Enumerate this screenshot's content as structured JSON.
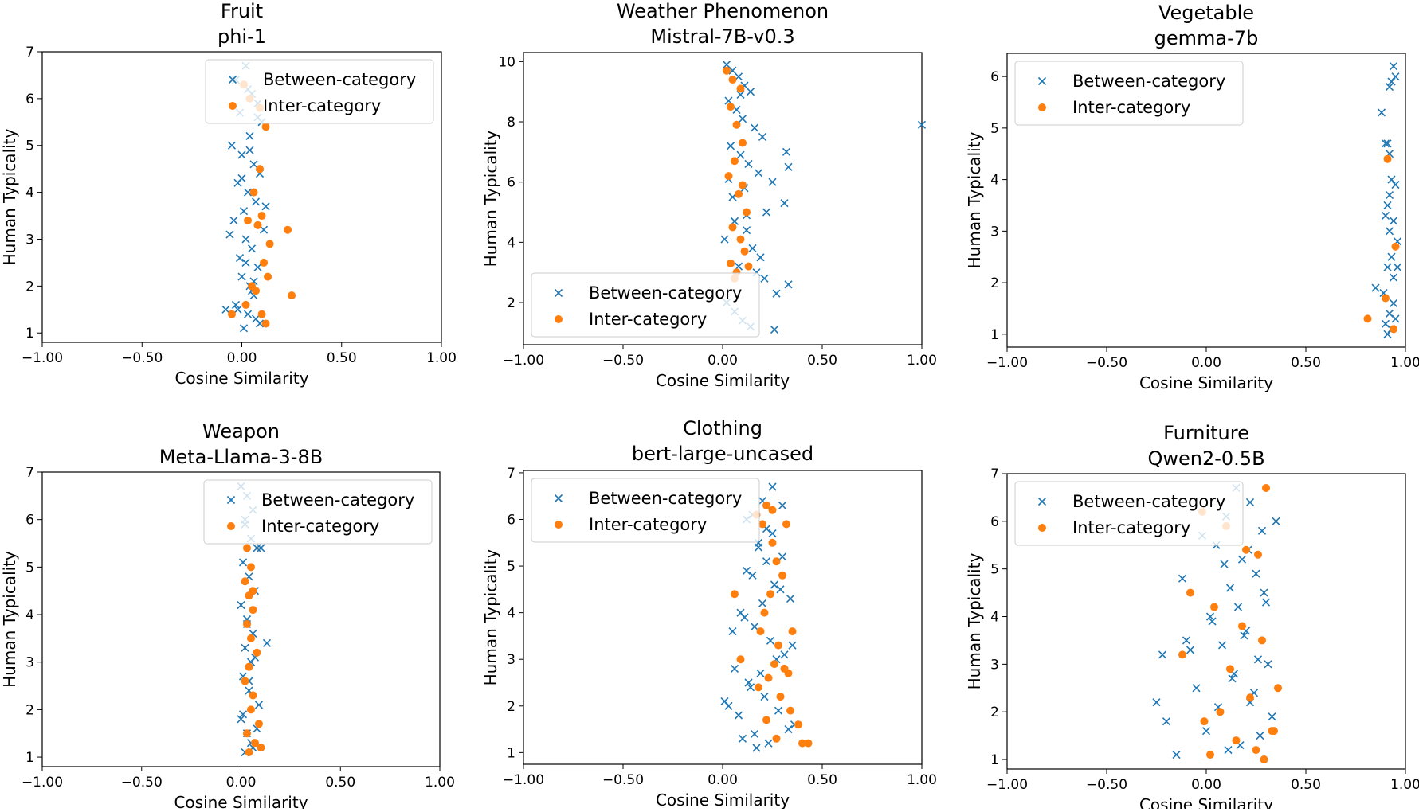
{
  "colors": {
    "between": "#1f77b4",
    "inter": "#ff7f0e"
  },
  "chart_data": [
    {
      "type": "scatter",
      "title": "Fruit",
      "subtitle": "phi-1",
      "xlabel": "Cosine Similarity",
      "ylabel": "Human Typicality",
      "xlim": [
        -1,
        1
      ],
      "ylim": [
        0.8,
        7.0
      ],
      "xticks": [
        -1,
        -0.5,
        0,
        0.5,
        1
      ],
      "xtick_labels": [
        "−1.00",
        "−0.50",
        "0.00",
        "0.50",
        "1.00"
      ],
      "yticks": [
        1,
        2,
        3,
        4,
        5,
        6,
        7
      ],
      "ytick_labels": [
        "1",
        "2",
        "3",
        "4",
        "5",
        "6",
        "7"
      ],
      "legend": {
        "position": "top-right",
        "entries": [
          "Between-category",
          "Inter-category"
        ]
      },
      "series": [
        {
          "name": "Between-category",
          "marker": "x",
          "x": [
            0.02,
            -0.03,
            0.05,
            0.08,
            -0.01,
            0.1,
            0.04,
            -0.05,
            0.0,
            0.06,
            0.09,
            -0.02,
            0.03,
            0.07,
            0.01,
            -0.04,
            0.11,
            0.02,
            0.05,
            -0.01,
            0.08,
            0.0,
            0.04,
            0.06,
            -0.03,
            0.03,
            0.09,
            0.01,
            0.07,
            -0.02,
            0.05,
            0.02,
            -0.06,
            0.12,
            0.0,
            0.04,
            0.08,
            -0.08,
            0.03,
            0.06
          ],
          "y": [
            6.7,
            6.4,
            6.1,
            5.9,
            5.7,
            5.5,
            5.2,
            5.0,
            4.8,
            4.6,
            4.4,
            4.2,
            4.0,
            3.8,
            3.6,
            3.4,
            3.2,
            3.0,
            2.8,
            2.6,
            2.4,
            2.2,
            2.0,
            1.8,
            1.6,
            1.4,
            1.2,
            1.1,
            1.3,
            1.5,
            1.9,
            2.5,
            3.1,
            3.7,
            4.3,
            4.9,
            5.6,
            1.5,
            6.2,
            2.1
          ]
        },
        {
          "name": "Inter-category",
          "marker": "o",
          "x": [
            0.01,
            0.04,
            0.09,
            0.12,
            0.06,
            0.1,
            0.03,
            0.08,
            0.14,
            0.23,
            0.25,
            0.11,
            0.13,
            0.05,
            0.07,
            0.02,
            0.1,
            0.12,
            -0.05,
            0.09
          ],
          "y": [
            6.3,
            6.0,
            5.8,
            5.4,
            4.0,
            3.5,
            3.4,
            3.3,
            2.9,
            3.2,
            1.8,
            2.5,
            2.2,
            2.0,
            1.9,
            1.6,
            1.4,
            1.2,
            1.4,
            4.5
          ]
        }
      ]
    },
    {
      "type": "scatter",
      "title": "Weather Phenomenon",
      "subtitle": "Mistral-7B-v0.3",
      "xlabel": "Cosine Similarity",
      "ylabel": "Human Typicality",
      "xlim": [
        -1,
        1
      ],
      "ylim": [
        0.6,
        10.3
      ],
      "xticks": [
        -1,
        -0.5,
        0,
        0.5,
        1
      ],
      "xtick_labels": [
        "−1.00",
        "−0.50",
        "0.00",
        "0.50",
        "1.00"
      ],
      "yticks": [
        2,
        4,
        6,
        8,
        10
      ],
      "ytick_labels": [
        "2",
        "4",
        "6",
        "8",
        "10"
      ],
      "legend": {
        "position": "bottom-left",
        "entries": [
          "Between-category",
          "Inter-category"
        ]
      },
      "series": [
        {
          "name": "Between-category",
          "marker": "x",
          "x": [
            0.02,
            0.05,
            0.08,
            0.11,
            0.14,
            0.03,
            0.07,
            0.1,
            0.16,
            0.2,
            0.04,
            0.09,
            0.13,
            0.18,
            0.25,
            0.32,
            0.33,
            0.31,
            0.22,
            0.06,
            0.12,
            0.01,
            0.15,
            0.19,
            0.08,
            0.27,
            0.33,
            0.26,
            1.0,
            0.02,
            0.06,
            0.1,
            0.14,
            0.05,
            0.11,
            0.17,
            0.21,
            0.09,
            0.03,
            0.12
          ],
          "y": [
            9.9,
            9.7,
            9.5,
            9.2,
            9.0,
            8.7,
            8.4,
            8.1,
            7.8,
            7.5,
            7.2,
            6.9,
            6.6,
            6.3,
            6.0,
            7.0,
            6.5,
            5.3,
            5.0,
            4.7,
            4.4,
            4.1,
            3.8,
            3.5,
            3.2,
            2.3,
            2.6,
            1.1,
            7.9,
            2.0,
            1.7,
            1.4,
            1.2,
            5.5,
            5.8,
            3.0,
            2.8,
            8.9,
            6.1,
            4.9
          ]
        },
        {
          "name": "Inter-category",
          "marker": "o",
          "x": [
            0.02,
            0.05,
            0.09,
            0.04,
            0.07,
            0.1,
            0.06,
            0.03,
            0.08,
            0.12,
            0.05,
            0.09,
            0.11,
            0.04,
            0.07,
            0.13,
            0.06,
            0.1
          ],
          "y": [
            9.7,
            9.4,
            9.1,
            8.5,
            7.9,
            7.3,
            6.7,
            6.2,
            5.6,
            5.0,
            4.5,
            4.1,
            3.7,
            3.3,
            3.0,
            3.2,
            2.8,
            5.9
          ]
        }
      ]
    },
    {
      "type": "scatter",
      "title": "Vegetable",
      "subtitle": "gemma-7b",
      "xlabel": "Cosine Similarity",
      "ylabel": "Human Typicality",
      "xlim": [
        -1,
        1
      ],
      "ylim": [
        0.75,
        6.45
      ],
      "xticks": [
        -1,
        -0.5,
        0,
        0.5,
        1
      ],
      "xtick_labels": [
        "−1.00",
        "−0.50",
        "0.00",
        "0.50",
        "1.00"
      ],
      "yticks": [
        1,
        2,
        3,
        4,
        5,
        6
      ],
      "ytick_labels": [
        "1",
        "2",
        "3",
        "4",
        "5",
        "6"
      ],
      "legend": {
        "position": "top-left",
        "entries": [
          "Between-category",
          "Inter-category"
        ]
      },
      "series": [
        {
          "name": "Between-category",
          "marker": "x",
          "x": [
            0.94,
            0.95,
            0.93,
            0.92,
            0.91,
            0.88,
            0.9,
            0.92,
            0.93,
            0.95,
            0.91,
            0.94,
            0.9,
            0.92,
            0.96,
            0.93,
            0.91,
            0.85,
            0.89,
            0.94,
            0.92,
            0.95,
            0.9,
            0.93,
            0.91,
            0.94,
            0.92,
            0.96
          ],
          "y": [
            6.2,
            6.0,
            5.9,
            5.8,
            4.7,
            5.3,
            4.7,
            4.5,
            4.0,
            3.9,
            3.5,
            3.2,
            3.3,
            3.0,
            2.8,
            2.5,
            2.3,
            1.9,
            1.8,
            1.6,
            1.4,
            1.3,
            1.2,
            1.1,
            1.0,
            2.1,
            3.7,
            2.3
          ]
        },
        {
          "name": "Inter-category",
          "marker": "o",
          "x": [
            0.91,
            0.95,
            0.81,
            0.94,
            0.9
          ],
          "y": [
            4.4,
            2.7,
            1.3,
            1.1,
            1.7
          ]
        }
      ]
    },
    {
      "type": "scatter",
      "title": "Weapon",
      "subtitle": "Meta-Llama-3-8B",
      "xlabel": "Cosine Similarity",
      "ylabel": "Human Typicality",
      "xlim": [
        -1,
        1
      ],
      "ylim": [
        0.8,
        7.0
      ],
      "xticks": [
        -1,
        -0.5,
        0,
        0.5,
        1
      ],
      "xtick_labels": [
        "−1.00",
        "−0.50",
        "0.00",
        "0.50",
        "1.00"
      ],
      "yticks": [
        1,
        2,
        3,
        4,
        5,
        6,
        7
      ],
      "ytick_labels": [
        "1",
        "2",
        "3",
        "4",
        "5",
        "6",
        "7"
      ],
      "legend": {
        "position": "top-right",
        "entries": [
          "Between-category",
          "Inter-category"
        ]
      },
      "series": [
        {
          "name": "Between-category",
          "marker": "x",
          "x": [
            0.0,
            0.03,
            0.06,
            0.02,
            0.05,
            0.08,
            0.01,
            0.04,
            0.07,
            0.0,
            0.03,
            0.06,
            0.02,
            0.05,
            0.13,
            0.01,
            0.04,
            0.09,
            0.0,
            0.03,
            0.06,
            0.02,
            0.05,
            0.08,
            0.01,
            0.04,
            0.07,
            0.03,
            0.1,
            0.02
          ],
          "y": [
            6.7,
            6.5,
            6.2,
            5.9,
            5.6,
            5.4,
            5.1,
            4.8,
            4.5,
            4.2,
            3.9,
            3.6,
            3.3,
            3.0,
            3.4,
            2.7,
            2.4,
            2.1,
            1.8,
            1.5,
            1.2,
            1.1,
            1.3,
            1.6,
            1.9,
            2.6,
            3.1,
            3.8,
            5.4,
            6.0
          ]
        },
        {
          "name": "Inter-category",
          "marker": "o",
          "x": [
            0.03,
            0.05,
            0.02,
            0.04,
            0.06,
            0.03,
            0.05,
            0.08,
            0.04,
            0.02,
            0.06,
            0.05,
            0.09,
            0.03,
            0.07,
            0.04,
            0.06,
            0.1
          ],
          "y": [
            5.4,
            5.0,
            4.7,
            4.4,
            4.1,
            3.8,
            3.5,
            3.2,
            2.9,
            2.6,
            2.3,
            2.0,
            1.7,
            1.5,
            1.3,
            1.1,
            4.5,
            1.2
          ]
        }
      ]
    },
    {
      "type": "scatter",
      "title": "Clothing",
      "subtitle": "bert-large-uncased",
      "xlabel": "Cosine Similarity",
      "ylabel": "Human Typicality",
      "xlim": [
        -1,
        1
      ],
      "ylim": [
        0.75,
        7.05
      ],
      "xticks": [
        -1,
        -0.5,
        0,
        0.5,
        1
      ],
      "xtick_labels": [
        "−1.00",
        "−0.50",
        "0.00",
        "0.50",
        "1.00"
      ],
      "yticks": [
        1,
        2,
        3,
        4,
        5,
        6,
        7
      ],
      "ytick_labels": [
        "1",
        "2",
        "3",
        "4",
        "5",
        "6",
        "7"
      ],
      "legend": {
        "position": "top-left",
        "entries": [
          "Between-category",
          "Inter-category"
        ]
      },
      "series": [
        {
          "name": "Between-category",
          "marker": "x",
          "x": [
            0.25,
            0.2,
            0.15,
            0.22,
            0.3,
            0.18,
            0.12,
            0.26,
            0.34,
            0.09,
            0.16,
            0.24,
            0.31,
            0.06,
            0.13,
            0.21,
            0.28,
            0.36,
            0.1,
            0.17,
            0.23,
            0.33,
            0.01,
            0.08,
            0.14,
            0.19,
            0.27,
            0.35,
            0.05,
            0.11,
            0.2,
            0.29,
            0.15,
            0.22,
            0.18,
            0.25,
            0.12,
            0.3,
            0.03,
            0.16
          ],
          "y": [
            6.7,
            6.4,
            6.1,
            5.8,
            5.2,
            5.5,
            4.9,
            4.6,
            4.3,
            4.0,
            3.7,
            3.4,
            3.1,
            2.8,
            2.5,
            2.2,
            1.9,
            1.6,
            1.3,
            1.1,
            1.2,
            1.5,
            2.1,
            1.8,
            2.4,
            2.7,
            3.0,
            3.3,
            3.6,
            3.9,
            4.2,
            4.5,
            4.8,
            5.1,
            5.4,
            5.7,
            6.0,
            6.3,
            2.0,
            1.4
          ]
        },
        {
          "name": "Inter-category",
          "marker": "o",
          "x": [
            0.17,
            0.22,
            0.25,
            0.2,
            0.32,
            0.27,
            0.3,
            0.24,
            0.21,
            0.19,
            0.28,
            0.35,
            0.26,
            0.31,
            0.23,
            0.18,
            0.29,
            0.34,
            0.38,
            0.4,
            0.43,
            0.27,
            0.06,
            0.09,
            0.22,
            0.33,
            0.25
          ],
          "y": [
            6.1,
            6.3,
            6.2,
            5.9,
            5.9,
            5.1,
            4.8,
            4.4,
            4.0,
            3.6,
            3.3,
            3.6,
            2.9,
            2.8,
            2.6,
            2.4,
            2.2,
            1.9,
            1.6,
            1.2,
            1.2,
            1.3,
            4.4,
            3.0,
            1.7,
            2.7,
            5.5
          ]
        }
      ]
    },
    {
      "type": "scatter",
      "title": "Furniture",
      "subtitle": "Qwen2-0.5B",
      "xlabel": "Cosine Similarity",
      "ylabel": "Human Typicality",
      "xlim": [
        -1,
        1
      ],
      "ylim": [
        0.8,
        7.0
      ],
      "xticks": [
        -1,
        -0.5,
        0,
        0.5,
        1
      ],
      "xtick_labels": [
        "−1.00",
        "−0.50",
        "0.00",
        "0.50",
        "1.00"
      ],
      "yticks": [
        1,
        2,
        3,
        4,
        5,
        6,
        7
      ],
      "ytick_labels": [
        "1",
        "2",
        "3",
        "4",
        "5",
        "6",
        "7"
      ],
      "legend": {
        "position": "top-left",
        "entries": [
          "Between-category",
          "Inter-category"
        ]
      },
      "series": [
        {
          "name": "Between-category",
          "marker": "x",
          "x": [
            0.15,
            0.22,
            0.1,
            0.28,
            0.05,
            0.18,
            0.25,
            0.12,
            0.3,
            0.02,
            0.2,
            -0.1,
            0.08,
            0.26,
            0.14,
            -0.05,
            0.22,
            0.33,
            0.0,
            0.17,
            -0.15,
            0.11,
            0.27,
            -0.2,
            0.06,
            0.24,
            -0.25,
            0.13,
            0.31,
            -0.08,
            0.19,
            0.03,
            -0.22,
            0.16,
            0.29,
            -0.12,
            0.09,
            0.21,
            -0.02,
            0.35
          ],
          "y": [
            6.7,
            6.4,
            6.1,
            5.8,
            5.5,
            5.2,
            4.9,
            4.6,
            4.3,
            4.0,
            3.7,
            3.5,
            3.4,
            3.1,
            2.8,
            2.5,
            2.2,
            1.9,
            1.6,
            1.3,
            1.1,
            1.2,
            1.5,
            1.8,
            2.1,
            2.4,
            2.2,
            2.7,
            3.0,
            3.3,
            3.6,
            3.9,
            3.2,
            4.2,
            4.5,
            4.8,
            5.1,
            5.4,
            5.7,
            6.0
          ]
        },
        {
          "name": "Inter-category",
          "marker": "o",
          "x": [
            -0.02,
            0.3,
            0.1,
            0.2,
            0.26,
            -0.08,
            0.04,
            0.18,
            0.28,
            -0.12,
            0.12,
            0.36,
            0.22,
            0.07,
            -0.01,
            0.33,
            0.15,
            0.25,
            0.02,
            0.29,
            0.34
          ],
          "y": [
            6.2,
            6.7,
            5.9,
            5.4,
            5.3,
            4.5,
            4.2,
            3.8,
            3.5,
            3.2,
            2.9,
            2.5,
            2.3,
            2.0,
            1.8,
            1.6,
            1.4,
            1.2,
            1.1,
            1.0,
            1.6
          ]
        }
      ]
    }
  ]
}
